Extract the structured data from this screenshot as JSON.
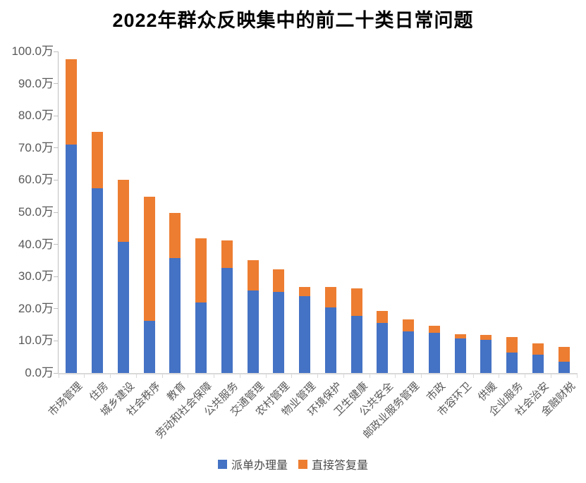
{
  "chart_data": {
    "type": "bar",
    "stacked": true,
    "title": "2022年群众反映集中的前二十类日常问题",
    "unit": "万",
    "categories": [
      "市场管理",
      "住房",
      "城乡建设",
      "社会秩序",
      "教育",
      "劳动和社会保障",
      "公共服务",
      "交通管理",
      "农村管理",
      "物业管理",
      "环境保护",
      "卫生健康",
      "公共安全",
      "邮政业服务管理",
      "市政",
      "市容环卫",
      "供暖",
      "企业服务",
      "社会治安",
      "金融财税"
    ],
    "series": [
      {
        "name": "派单办理量",
        "color": "#4472C4",
        "values": [
          71.0,
          57.5,
          40.7,
          16.3,
          35.7,
          22.0,
          32.6,
          25.6,
          25.2,
          24.0,
          20.4,
          17.8,
          15.6,
          12.9,
          12.4,
          10.8,
          10.4,
          6.3,
          5.8,
          3.6
        ]
      },
      {
        "name": "直接答复量",
        "color": "#ED7D31",
        "values": [
          26.5,
          17.5,
          19.5,
          38.6,
          14.1,
          19.8,
          8.6,
          9.4,
          7.1,
          2.8,
          6.3,
          8.6,
          3.8,
          3.8,
          2.2,
          1.2,
          1.5,
          4.8,
          3.5,
          4.5
        ]
      }
    ],
    "ylim": [
      0,
      100
    ],
    "ytick_step": 10,
    "ytick_labels": [
      "0.0万",
      "10.0万",
      "20.0万",
      "30.0万",
      "40.0万",
      "50.0万",
      "60.0万",
      "70.0万",
      "80.0万",
      "90.0万",
      "100.0万"
    ],
    "xtick_rotation_deg": 45,
    "grid": false,
    "legend_position": "bottom"
  },
  "colors": {
    "axis_line": "#BFBFBF",
    "baseline": "#D9D9D9",
    "tick_text": "#595959",
    "title_text": "#000000"
  }
}
